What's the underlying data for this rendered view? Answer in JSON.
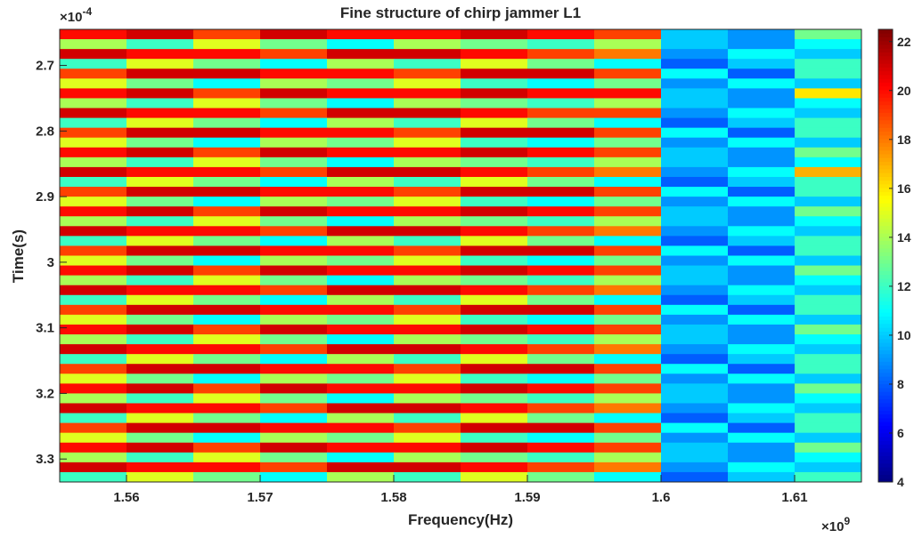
{
  "chart_data": {
    "type": "heatmap",
    "title": "Fine structure of chirp jammer L1",
    "x_label": "Frequency(Hz)",
    "y_label": "Time(s)",
    "x_multiplier": {
      "base": "×10",
      "exponent": "9"
    },
    "y_multiplier": {
      "base": "×10",
      "exponent": "-4"
    },
    "xlim": [
      1.555,
      1.615
    ],
    "xticks": [
      1.56,
      1.57,
      1.58,
      1.59,
      1.6,
      1.61
    ],
    "ylim": [
      2.645,
      3.335
    ],
    "yticks": [
      2.7,
      2.8,
      2.9,
      3,
      3.1,
      3.2,
      3.3
    ],
    "y_reversed": true,
    "clim": [
      4,
      22.5
    ],
    "cticks": [
      4,
      6,
      8,
      10,
      12,
      14,
      16,
      18,
      20,
      22
    ],
    "colormap": "jet",
    "x": [
      1.5575,
      1.5625,
      1.5675,
      1.5725,
      1.5775,
      1.5825,
      1.5875,
      1.5925,
      1.5975,
      1.6025,
      1.6075,
      1.6125
    ],
    "y": [
      2.6525,
      2.6675,
      2.6825,
      2.6975,
      2.7125,
      2.7275,
      2.7425,
      2.7575,
      2.7725,
      2.7875,
      2.8025,
      2.8175,
      2.8325,
      2.8475,
      2.8625,
      2.8775,
      2.8925,
      2.9075,
      2.9225,
      2.9375,
      2.9525,
      2.9675,
      2.9825,
      2.9975,
      3.0125,
      3.0275,
      3.0425,
      3.0575,
      3.0725,
      3.0875,
      3.1025,
      3.1175,
      3.1325,
      3.1475,
      3.1625,
      3.1775,
      3.1925,
      3.2075,
      3.2225,
      3.2375,
      3.2525,
      3.2675,
      3.2825,
      3.2975,
      3.3125,
      3.3275
    ],
    "z": [
      [
        20,
        21,
        19,
        21,
        20,
        20,
        21,
        20,
        19,
        10,
        9,
        13
      ],
      [
        14,
        12,
        15,
        13,
        11,
        14,
        13,
        12,
        14,
        10,
        9,
        11
      ],
      [
        21,
        20,
        20,
        19,
        21,
        21,
        20,
        19,
        18,
        9,
        11,
        10
      ],
      [
        12,
        15,
        13,
        11,
        14,
        12,
        15,
        13,
        11,
        8,
        10,
        12
      ],
      [
        19,
        21,
        21,
        20,
        20,
        19,
        21,
        21,
        19,
        11,
        8,
        12
      ],
      [
        15,
        13,
        11,
        14,
        13,
        15,
        12,
        11,
        13,
        9,
        11,
        10
      ],
      [
        20,
        21,
        19,
        21,
        20,
        20,
        21,
        20,
        20,
        10,
        9,
        16
      ],
      [
        14,
        12,
        15,
        13,
        11,
        14,
        13,
        12,
        14,
        10,
        9,
        11
      ],
      [
        21,
        20,
        20,
        19,
        21,
        21,
        20,
        19,
        19,
        9,
        11,
        10
      ],
      [
        12,
        15,
        13,
        11,
        14,
        12,
        15,
        13,
        11,
        8,
        10,
        12
      ],
      [
        19,
        21,
        21,
        20,
        20,
        19,
        21,
        21,
        19,
        11,
        8,
        12
      ],
      [
        15,
        13,
        11,
        14,
        13,
        15,
        12,
        11,
        13,
        9,
        11,
        10
      ],
      [
        20,
        21,
        19,
        21,
        20,
        20,
        21,
        20,
        19,
        10,
        9,
        13
      ],
      [
        14,
        12,
        15,
        13,
        11,
        14,
        13,
        12,
        14,
        10,
        9,
        11
      ],
      [
        21,
        20,
        20,
        19,
        21,
        21,
        20,
        19,
        18,
        9,
        11,
        17
      ],
      [
        12,
        15,
        13,
        11,
        14,
        12,
        15,
        13,
        11,
        8,
        10,
        12
      ],
      [
        19,
        21,
        21,
        20,
        20,
        19,
        21,
        21,
        19,
        11,
        8,
        12
      ],
      [
        15,
        13,
        11,
        14,
        13,
        15,
        12,
        11,
        13,
        9,
        11,
        10
      ],
      [
        20,
        21,
        19,
        21,
        20,
        20,
        21,
        20,
        19,
        10,
        9,
        13
      ],
      [
        14,
        12,
        15,
        13,
        11,
        14,
        13,
        12,
        14,
        10,
        9,
        11
      ],
      [
        21,
        20,
        20,
        19,
        21,
        21,
        20,
        19,
        18,
        9,
        11,
        10
      ],
      [
        12,
        15,
        13,
        11,
        14,
        12,
        15,
        13,
        11,
        8,
        10,
        12
      ],
      [
        19,
        21,
        21,
        20,
        20,
        19,
        21,
        21,
        19,
        11,
        8,
        12
      ],
      [
        15,
        13,
        11,
        14,
        13,
        15,
        12,
        11,
        13,
        9,
        11,
        10
      ],
      [
        20,
        21,
        19,
        21,
        20,
        20,
        21,
        20,
        19,
        10,
        9,
        13
      ],
      [
        14,
        12,
        15,
        13,
        11,
        14,
        13,
        12,
        14,
        10,
        9,
        11
      ],
      [
        21,
        20,
        20,
        19,
        21,
        21,
        20,
        19,
        18,
        9,
        11,
        10
      ],
      [
        12,
        15,
        13,
        11,
        14,
        12,
        15,
        13,
        11,
        8,
        10,
        12
      ],
      [
        19,
        21,
        21,
        20,
        20,
        19,
        21,
        21,
        19,
        11,
        8,
        12
      ],
      [
        15,
        13,
        11,
        14,
        13,
        15,
        12,
        11,
        13,
        9,
        11,
        10
      ],
      [
        20,
        21,
        19,
        21,
        20,
        20,
        21,
        20,
        19,
        10,
        9,
        13
      ],
      [
        14,
        12,
        15,
        13,
        11,
        14,
        13,
        12,
        14,
        10,
        9,
        11
      ],
      [
        21,
        20,
        20,
        19,
        21,
        21,
        20,
        19,
        18,
        9,
        11,
        10
      ],
      [
        12,
        15,
        13,
        11,
        14,
        12,
        15,
        13,
        11,
        8,
        10,
        12
      ],
      [
        19,
        21,
        21,
        20,
        20,
        19,
        21,
        21,
        19,
        11,
        8,
        12
      ],
      [
        15,
        13,
        11,
        14,
        13,
        15,
        12,
        11,
        13,
        9,
        11,
        10
      ],
      [
        20,
        21,
        19,
        21,
        20,
        20,
        21,
        20,
        19,
        10,
        9,
        13
      ],
      [
        14,
        12,
        15,
        13,
        11,
        14,
        13,
        12,
        14,
        10,
        9,
        11
      ],
      [
        21,
        20,
        20,
        19,
        21,
        21,
        20,
        19,
        18,
        9,
        11,
        10
      ],
      [
        12,
        15,
        13,
        11,
        14,
        12,
        15,
        13,
        11,
        8,
        10,
        12
      ],
      [
        19,
        21,
        21,
        20,
        20,
        19,
        21,
        21,
        19,
        11,
        8,
        12
      ],
      [
        15,
        13,
        11,
        14,
        13,
        15,
        12,
        11,
        13,
        9,
        11,
        10
      ],
      [
        20,
        21,
        19,
        21,
        20,
        20,
        21,
        20,
        19,
        10,
        9,
        13
      ],
      [
        14,
        12,
        15,
        13,
        11,
        14,
        13,
        12,
        14,
        10,
        9,
        11
      ],
      [
        21,
        20,
        20,
        19,
        21,
        21,
        20,
        19,
        18,
        9,
        11,
        10
      ],
      [
        12,
        15,
        13,
        11,
        14,
        12,
        15,
        13,
        11,
        8,
        10,
        12
      ]
    ]
  }
}
